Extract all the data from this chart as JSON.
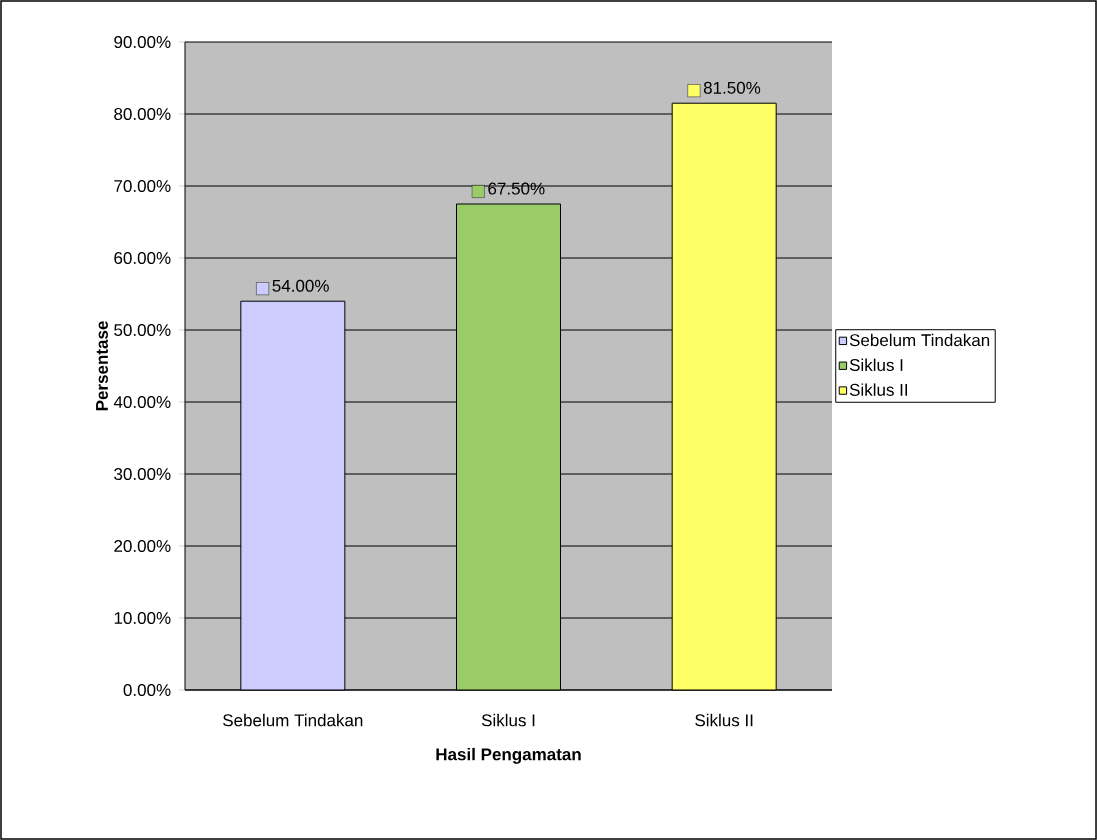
{
  "chart_data": {
    "type": "bar",
    "xlabel": "Hasil Pengamatan",
    "ylabel": "Persentase",
    "categories": [
      "Sebelum Tindakan",
      "Siklus I",
      "Siklus II"
    ],
    "series": [
      {
        "name": "Sebelum Tindakan",
        "color": "#ccccff",
        "values": [
          54,
          null,
          null
        ],
        "value_labels": [
          "54.00%",
          null,
          null
        ]
      },
      {
        "name": "Siklus I",
        "color": "#99cc66",
        "values": [
          null,
          67.5,
          null
        ],
        "value_labels": [
          null,
          "67.50%",
          null
        ]
      },
      {
        "name": "Siklus II",
        "color": "#ffff66",
        "values": [
          null,
          null,
          81.5
        ],
        "value_labels": [
          null,
          null,
          "81.50%"
        ]
      }
    ],
    "ylim": [
      0,
      90
    ],
    "yticks": [
      {
        "value": 0,
        "label": "0.00%"
      },
      {
        "value": 10,
        "label": "10.00%"
      },
      {
        "value": 20,
        "label": "20.00%"
      },
      {
        "value": 30,
        "label": "30.00%"
      },
      {
        "value": 40,
        "label": "40.00%"
      },
      {
        "value": 50,
        "label": "50.00%"
      },
      {
        "value": 60,
        "label": "60.00%"
      },
      {
        "value": 70,
        "label": "70.00%"
      },
      {
        "value": 80,
        "label": "80.00%"
      },
      {
        "value": 90,
        "label": "90.00%"
      }
    ],
    "grid": "y",
    "legend": "right"
  }
}
